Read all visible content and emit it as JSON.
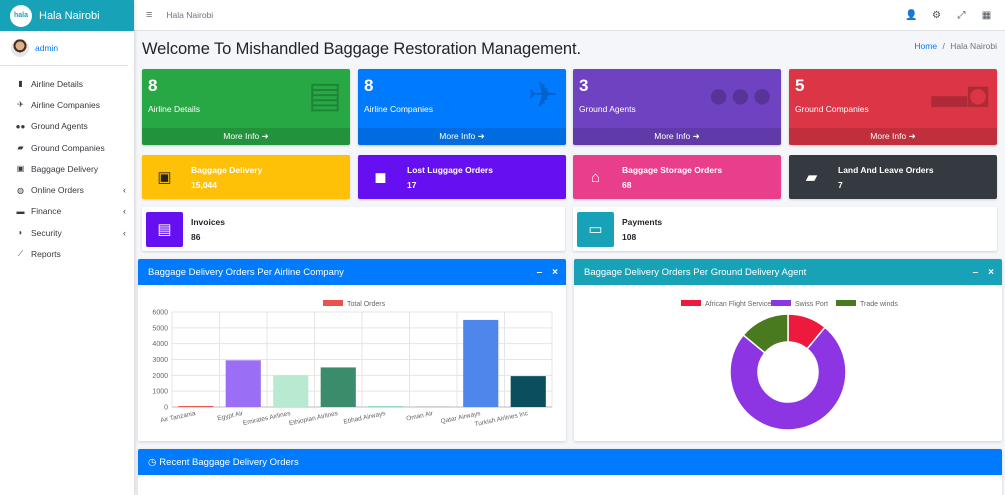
{
  "brand": {
    "logo": "hala",
    "name": "Hala Nairobi"
  },
  "user": {
    "name": "admin"
  },
  "nav": [
    {
      "label": "Airline Details",
      "icon": "document-icon",
      "glyph": "▮",
      "chev": ""
    },
    {
      "label": "Airline Companies",
      "icon": "plane-icon",
      "glyph": "✈",
      "chev": ""
    },
    {
      "label": "Ground Agents",
      "icon": "users-icon",
      "glyph": "●●",
      "chev": ""
    },
    {
      "label": "Ground Companies",
      "icon": "truck-icon",
      "glyph": "▰",
      "chev": ""
    },
    {
      "label": "Baggage Delivery",
      "icon": "dolly-icon",
      "glyph": "▣",
      "chev": ""
    },
    {
      "label": "Online Orders",
      "icon": "globe-icon",
      "glyph": "◍",
      "chev": "‹"
    },
    {
      "label": "Finance",
      "icon": "money-icon",
      "glyph": "▬",
      "chev": "‹"
    },
    {
      "label": "Security",
      "icon": "shield-icon",
      "glyph": "◗",
      "chev": "‹"
    },
    {
      "label": "Reports",
      "icon": "chart-line-icon",
      "glyph": "⟋",
      "chev": ""
    }
  ],
  "topbar": {
    "menu": "≡",
    "title": "Hala Nairobi",
    "icons": [
      "👤",
      "⚙",
      "⤢",
      "▦"
    ]
  },
  "page": {
    "title": "Welcome To Mishandled Baggage Restoration Management.",
    "crumb_home": "Home",
    "crumb_sep": "/",
    "crumb_current": "Hala Nairobi"
  },
  "stats": [
    {
      "num": "8",
      "label": "Airline Details",
      "more": "More Info ➜",
      "color": "#28a745",
      "icon": "file-icon",
      "glyph": "▤"
    },
    {
      "num": "8",
      "label": "Airline Companies",
      "more": "More Info ➜",
      "color": "#007bff",
      "icon": "plane-icon",
      "glyph": "✈"
    },
    {
      "num": "3",
      "label": "Ground Agents",
      "more": "More Info ➜",
      "color": "#6f42c1",
      "icon": "users-icon",
      "glyph": "●●●"
    },
    {
      "num": "5",
      "label": "Ground Companies",
      "more": "More Info ➜",
      "color": "#dc3545",
      "icon": "truck-icon",
      "glyph": "▬◘"
    }
  ],
  "infos": [
    {
      "title": "Baggage Delivery",
      "value": "15,044",
      "bg": "#ffc107",
      "fg": "#fff",
      "iconbg": "transparent",
      "iconfg": "#212529",
      "icon": "dolly-icon",
      "glyph": "▣"
    },
    {
      "title": "Lost Luggage Orders",
      "value": "17",
      "bg": "#6610f2",
      "fg": "#fff",
      "iconbg": "transparent",
      "iconfg": "#fff",
      "icon": "shopping-bag-icon",
      "glyph": "◼"
    },
    {
      "title": "Baggage Storage Orders",
      "value": "68",
      "bg": "#e83e8c",
      "fg": "#fff",
      "iconbg": "transparent",
      "iconfg": "#fff",
      "icon": "store-icon",
      "glyph": "⌂"
    },
    {
      "title": "Land And Leave Orders",
      "value": "7",
      "bg": "#343a40",
      "fg": "#fff",
      "iconbg": "transparent",
      "iconfg": "#fff",
      "icon": "truck-icon",
      "glyph": "▰"
    },
    {
      "title": "Invoices",
      "value": "86",
      "bg": "#fff",
      "fg": "#212529",
      "iconbg": "#6610f2",
      "iconfg": "#fff",
      "icon": "receipt-icon",
      "glyph": "▤"
    },
    {
      "title": "Payments",
      "value": "108",
      "bg": "#fff",
      "fg": "#212529",
      "iconbg": "#17a2b8",
      "iconfg": "#fff",
      "icon": "money-bill-icon",
      "glyph": "▭"
    }
  ],
  "cards": {
    "bar_title": "Baggage Delivery Orders Per Airline Company",
    "pie_title": "Baggage Delivery Orders Per Ground Delivery Agent",
    "recent_title": "Recent Baggage Delivery Orders",
    "minimize": "–",
    "close": "×"
  },
  "chart_data": [
    {
      "type": "bar",
      "categories": [
        "Air Tanzania",
        "Egypt Air",
        "Emirates Airlines",
        "Ethiopian Airlines",
        "Etihad Airways",
        "Oman Air",
        "Qatar Airways",
        "Turkish Airlines Inc"
      ],
      "series": [
        {
          "name": "Total Orders",
          "values": [
            60,
            2950,
            2000,
            2500,
            50,
            20,
            5500,
            1950
          ]
        }
      ],
      "colors": [
        "#e8534a",
        "#9b6ff5",
        "#b7ead0",
        "#3a8c6b",
        "#6fd6a8",
        "#8e9aa8",
        "#4f86ec",
        "#0b4e5e"
      ],
      "ylim": [
        0,
        6000
      ],
      "yticks": [
        0,
        1000,
        2000,
        3000,
        4000,
        5000,
        6000
      ],
      "legend": "top",
      "grid": true
    },
    {
      "type": "pie",
      "categories": [
        "African Flight Services",
        "Swiss Port",
        "Trade winds"
      ],
      "values": [
        11,
        75,
        14
      ],
      "colors": [
        "#ee1a3d",
        "#8e35e3",
        "#4a7a1f"
      ],
      "donut": true,
      "legend": "top"
    }
  ]
}
